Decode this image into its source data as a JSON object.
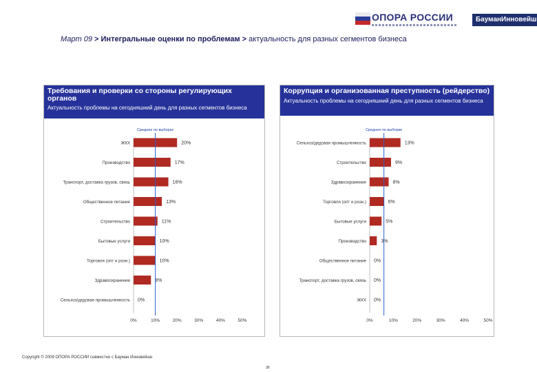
{
  "header": {
    "logo_text": "ОПОРА РОССИИ",
    "partner": "БауманИнновейшн",
    "title_lead": "Март 09",
    "title_mid": " > Интегральные оценки по проблемам > ",
    "title_tail": "актуальность для разных сегментов бизнеса"
  },
  "colors": {
    "bar": "#b02a22",
    "header_bg": "#26329a",
    "mean_line": "#2a5fd0"
  },
  "chart_data": [
    {
      "type": "bar",
      "orientation": "horizontal",
      "title": "Требования и проверки со стороны регулирующих органов",
      "subtitle": "Актуальность проблемы на сегодняшний день для разных сегментов бизнеса",
      "mean_label": "Среднее по выборке",
      "mean_value": 10,
      "categories": [
        "ЖКХ",
        "Производство",
        "Транспорт, доставка грузов, связь",
        "Общественное питание",
        "Строительство",
        "Бытовые услуги",
        "Торговля (опт и розн.)",
        "Здравоохранение",
        "Сельхоз/дедсвая промышленность"
      ],
      "values": [
        20,
        17,
        16,
        13,
        11,
        10,
        10,
        8,
        0
      ],
      "value_labels": [
        "20%",
        "17%",
        "16%",
        "13%",
        "11%",
        "10%",
        "10%",
        "8%",
        "0%"
      ],
      "xlim": [
        0,
        50
      ],
      "ticks": [
        "0%",
        "10%",
        "20%",
        "30%",
        "40%",
        "50%"
      ]
    },
    {
      "type": "bar",
      "orientation": "horizontal",
      "title": "Коррупция и организованная преступность (рейдерство)",
      "subtitle": "Актуальность проблемы на сегодняшний день для разных сегментов бизнеса",
      "mean_label": "Среднее по выборке",
      "mean_value": 6,
      "categories": [
        "Сельхоз/дедсвая промышленность",
        "Строительство",
        "Здравоохранение",
        "Торговля (опт и розн.)",
        "Бытовые услуги",
        "Производство",
        "Общественное питание",
        "Транспорт, доставка грузов, связь",
        "ЖКХ"
      ],
      "values": [
        13,
        9,
        8,
        6,
        5,
        3,
        0,
        0,
        0
      ],
      "value_labels": [
        "13%",
        "9%",
        "8%",
        "6%",
        "5%",
        "3%",
        "0%",
        "0%",
        "0%"
      ],
      "xlim": [
        0,
        50
      ],
      "ticks": [
        "0%",
        "10%",
        "20%",
        "30%",
        "40%",
        "50%"
      ]
    }
  ],
  "footer": {
    "copyright": "Copyright © 2009 ОПОРА РОССИИ совместно с Бауман Инновейшн",
    "page": "30"
  }
}
